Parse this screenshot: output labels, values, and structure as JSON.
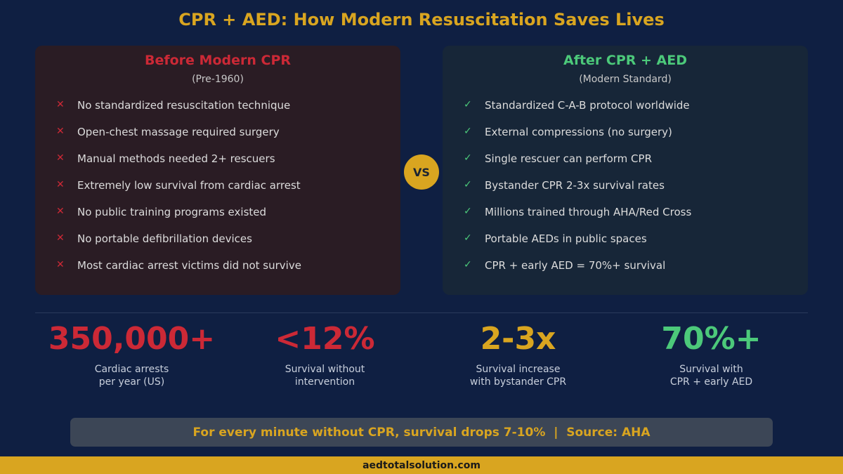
{
  "title": "CPR + AED: How Modern Resuscitation Saves Lives",
  "colors": {
    "background": "#0f1f42",
    "gold": "#d9a520",
    "red": "#cc2936",
    "green": "#4cc97a"
  },
  "before": {
    "heading": "Before Modern CPR",
    "subtitle": "(Pre-1960)",
    "marker": "✕",
    "items": [
      "No standardized resuscitation technique",
      "Open-chest massage required surgery",
      "Manual methods needed 2+ rescuers",
      "Extremely low survival from cardiac arrest",
      "No public training programs existed",
      "No portable defibrillation devices",
      "Most cardiac arrest victims did not survive"
    ]
  },
  "vs": "VS",
  "after": {
    "heading": "After CPR + AED",
    "subtitle": "(Modern Standard)",
    "marker": "✓",
    "items": [
      "Standardized C-A-B protocol worldwide",
      "External compressions (no surgery)",
      "Single rescuer can perform CPR",
      "Bystander CPR 2-3x survival rates",
      "Millions trained through AHA/Red Cross",
      "Portable AEDs in public spaces",
      "CPR + early AED = 70%+ survival"
    ]
  },
  "stats": [
    {
      "value": "350,000+",
      "line1": "Cardiac arrests",
      "line2": "per year (US)",
      "color": "#cc2936"
    },
    {
      "value": "<12%",
      "line1": "Survival without",
      "line2": "intervention",
      "color": "#cc2936"
    },
    {
      "value": "2-3x",
      "line1": "Survival increase",
      "line2": "with bystander CPR",
      "color": "#d9a520"
    },
    {
      "value": "70%+",
      "line1": "Survival with",
      "line2": "CPR + early AED",
      "color": "#4cc97a"
    }
  ],
  "banner": "For every minute without CPR, survival drops 7-10%  |  Source: AHA",
  "footer": "aedtotalsolution.com"
}
